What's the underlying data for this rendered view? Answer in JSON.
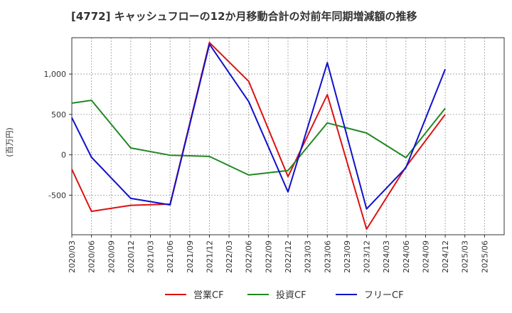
{
  "chart_data": {
    "type": "line",
    "title": "[4772]  キャッシュフローの12か月移動合計の対前年同期増減額の推移",
    "ylabel": "(百万円)",
    "xlabel": "",
    "x": [
      "2020/03",
      "2020/06",
      "2020/09",
      "2020/12",
      "2021/03",
      "2021/06",
      "2021/09",
      "2021/12",
      "2022/03",
      "2022/06",
      "2022/09",
      "2022/12",
      "2023/03",
      "2023/06",
      "2023/09",
      "2023/12",
      "2024/03",
      "2024/06",
      "2024/09",
      "2024/12",
      "2025/03",
      "2025/06"
    ],
    "ylim": [
      -990,
      1450
    ],
    "yticks": [
      -500,
      0,
      500,
      1000
    ],
    "ytick_labels": [
      "-500",
      "0",
      "500",
      "1,000"
    ],
    "grid": true,
    "legend_position": "bottom",
    "series": [
      {
        "name": "営業CF",
        "color": "#dd1111",
        "values": [
          -180,
          -700,
          null,
          -625,
          null,
          -610,
          null,
          1390,
          null,
          910,
          null,
          -270,
          null,
          745,
          null,
          -920,
          null,
          -150,
          null,
          500,
          null,
          null
        ]
      },
      {
        "name": "投資CF",
        "color": "#228822",
        "values": [
          640,
          675,
          null,
          85,
          null,
          -5,
          null,
          -20,
          null,
          -250,
          null,
          -195,
          null,
          395,
          null,
          270,
          null,
          -35,
          null,
          575,
          null,
          null
        ]
      },
      {
        "name": "フリーCF",
        "color": "#1111cc",
        "values": [
          460,
          -30,
          null,
          -540,
          null,
          -620,
          null,
          1370,
          null,
          660,
          null,
          -460,
          null,
          1140,
          null,
          -670,
          null,
          -160,
          null,
          1060,
          null,
          null
        ]
      }
    ]
  }
}
